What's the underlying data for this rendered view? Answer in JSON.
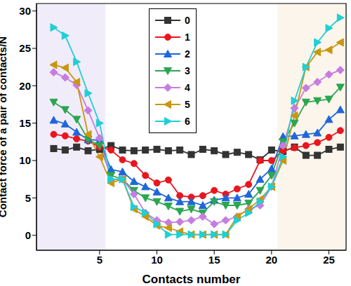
{
  "chart_data": {
    "type": "line",
    "x_label": "Contacts number",
    "y_label": "Contact force of a pair of contacts/N",
    "x": [
      1,
      2,
      3,
      4,
      5,
      6,
      7,
      8,
      9,
      10,
      11,
      12,
      13,
      14,
      15,
      16,
      17,
      18,
      19,
      20,
      21,
      22,
      23,
      24,
      25,
      26
    ],
    "xlim": [
      -0.5,
      26.5
    ],
    "xticks": [
      5,
      10,
      15,
      20,
      25
    ],
    "ylim": [
      -2,
      31
    ],
    "yticks": [
      0,
      5,
      10,
      15,
      20,
      25,
      30
    ],
    "grid": false,
    "legend": "upper center",
    "shaded_ranges": [
      {
        "x0": -0.5,
        "x1": 5.5,
        "color": "#f1ecfa"
      },
      {
        "x0": 20.5,
        "x1": 26.5,
        "color": "#fcf5ec"
      }
    ],
    "series": [
      {
        "name": "0",
        "color": "#333333",
        "marker": "square",
        "values": [
          11.6,
          11.4,
          11.8,
          11.3,
          11.5,
          12.0,
          11.4,
          11.3,
          11.4,
          11.5,
          11.3,
          11.4,
          10.8,
          11.5,
          11.3,
          10.8,
          11.1,
          10.8,
          10.1,
          11.4,
          11.2,
          11.8,
          10.7,
          10.7,
          11.5,
          11.8
        ]
      },
      {
        "name": "1",
        "color": "#e8161e",
        "marker": "circle",
        "values": [
          13.5,
          13.3,
          12.9,
          12.6,
          11.8,
          11.4,
          10.1,
          9.6,
          8.0,
          7.0,
          7.4,
          5.3,
          5.1,
          5.3,
          6.0,
          5.5,
          6.2,
          6.8,
          10.0,
          10.0,
          11.3,
          11.7,
          12.0,
          12.4,
          13.1,
          14.0
        ]
      },
      {
        "name": "2",
        "color": "#1f66d9",
        "marker": "triangle",
        "values": [
          15.4,
          14.9,
          13.8,
          12.8,
          12.7,
          8.8,
          8.5,
          7.2,
          6.5,
          5.8,
          5.0,
          4.5,
          4.5,
          4.0,
          4.7,
          5.0,
          5.0,
          5.5,
          7.5,
          8.9,
          13.2,
          13.3,
          13.5,
          13.7,
          15.5,
          16.8
        ]
      },
      {
        "name": "3",
        "color": "#2ba64f",
        "marker": "triangle-down",
        "values": [
          17.8,
          16.8,
          15.5,
          12.8,
          12.0,
          8.0,
          7.5,
          6.0,
          5.0,
          4.5,
          3.9,
          3.2,
          3.5,
          3.0,
          4.5,
          4.0,
          4.0,
          4.3,
          6.0,
          8.0,
          12.5,
          15.0,
          17.8,
          18.0,
          18.2,
          19.8
        ]
      },
      {
        "name": "4",
        "color": "#c77ce0",
        "marker": "diamond",
        "values": [
          21.8,
          21.1,
          20.1,
          16.7,
          13.0,
          7.4,
          7.5,
          5.5,
          3.0,
          2.0,
          1.7,
          1.8,
          2.0,
          2.5,
          1.5,
          2.0,
          2.5,
          3.5,
          4.0,
          6.5,
          12.0,
          17.0,
          19.7,
          20.5,
          21.5,
          22.1
        ]
      },
      {
        "name": "5",
        "color": "#c9960e",
        "marker": "triangle-left",
        "values": [
          22.8,
          22.4,
          20.5,
          13.5,
          10.5,
          7.0,
          7.5,
          3.5,
          2.5,
          1.3,
          1.0,
          0.5,
          0.1,
          0.1,
          0.1,
          0.1,
          2.5,
          3.5,
          4.8,
          6.5,
          10.0,
          16.0,
          22.5,
          24.5,
          24.8,
          25.8
        ]
      },
      {
        "name": "6",
        "color": "#1fcfd6",
        "marker": "triangle-right",
        "values": [
          27.8,
          26.7,
          23.2,
          19.0,
          15.0,
          7.5,
          7.5,
          3.8,
          3.0,
          1.5,
          0.1,
          0.1,
          0.1,
          0.1,
          0.1,
          0.1,
          2.0,
          3.0,
          4.5,
          6.5,
          10.5,
          18.0,
          22.5,
          25.8,
          27.7,
          29.1
        ]
      }
    ]
  }
}
